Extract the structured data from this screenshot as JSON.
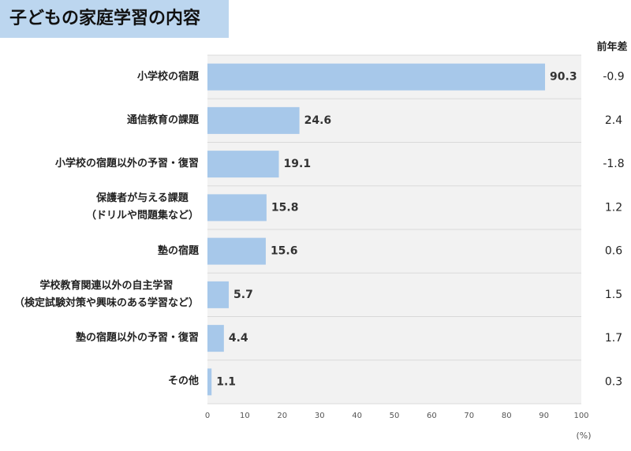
{
  "chart_data": {
    "type": "bar",
    "orientation": "horizontal",
    "title": "子どもの家庭学習の内容",
    "categories": [
      "小学校の宿題",
      "通信教育の課題",
      "小学校の宿題以外の予習・復習",
      "保護者が与える課題\n（ドリルや問題集など）",
      "塾の宿題",
      "学校教育関連以外の自主学習\n（検定試験対策や興味のある学習など）",
      "塾の宿題以外の予習・復習",
      "その他"
    ],
    "values": [
      90.3,
      24.6,
      19.1,
      15.8,
      15.6,
      5.7,
      4.4,
      1.1
    ],
    "color": "#a7c8ea",
    "xlim": [
      0,
      100
    ],
    "xticks": [
      0,
      10,
      20,
      30,
      40,
      50,
      60,
      70,
      80,
      90,
      100
    ],
    "x_unit": "(%)",
    "difference": {
      "header": "前年差",
      "values": [
        -0.9,
        2.4,
        -1.8,
        1.2,
        0.6,
        1.5,
        1.7,
        0.3
      ]
    }
  }
}
